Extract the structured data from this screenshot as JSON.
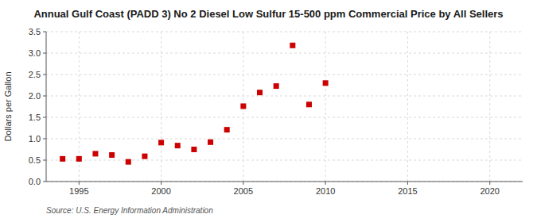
{
  "chart_data": {
    "type": "scatter",
    "title": "Annual Gulf Coast (PADD 3) No 2 Diesel Low Sulfur 15-500 ppm Commercial Price by All Sellers",
    "ylabel": "Dollars per Gallon",
    "source": "Source: U.S. Energy Information Administration",
    "x": [
      1994,
      1995,
      1996,
      1997,
      1998,
      1999,
      2000,
      2001,
      2002,
      2003,
      2004,
      2005,
      2006,
      2007,
      2008,
      2009,
      2010
    ],
    "values": [
      0.53,
      0.53,
      0.65,
      0.62,
      0.46,
      0.59,
      0.91,
      0.84,
      0.75,
      0.92,
      1.21,
      1.76,
      2.08,
      2.23,
      3.18,
      1.8,
      2.3
    ],
    "color": "#cc0000",
    "marker": "square",
    "xlim": [
      1993,
      2022
    ],
    "ylim": [
      0.0,
      3.5
    ],
    "xticks": [
      1995,
      2000,
      2005,
      2010,
      2015,
      2020
    ],
    "yticks": [
      {
        "value": 0.0,
        "label": "0.0"
      },
      0.5,
      {
        "value": 1.0,
        "label": "1.0"
      },
      1.5,
      {
        "value": 2.0,
        "label": "2.0"
      },
      2.5,
      {
        "value": 3.0,
        "label": "3.0"
      },
      3.5
    ],
    "grid": true
  }
}
